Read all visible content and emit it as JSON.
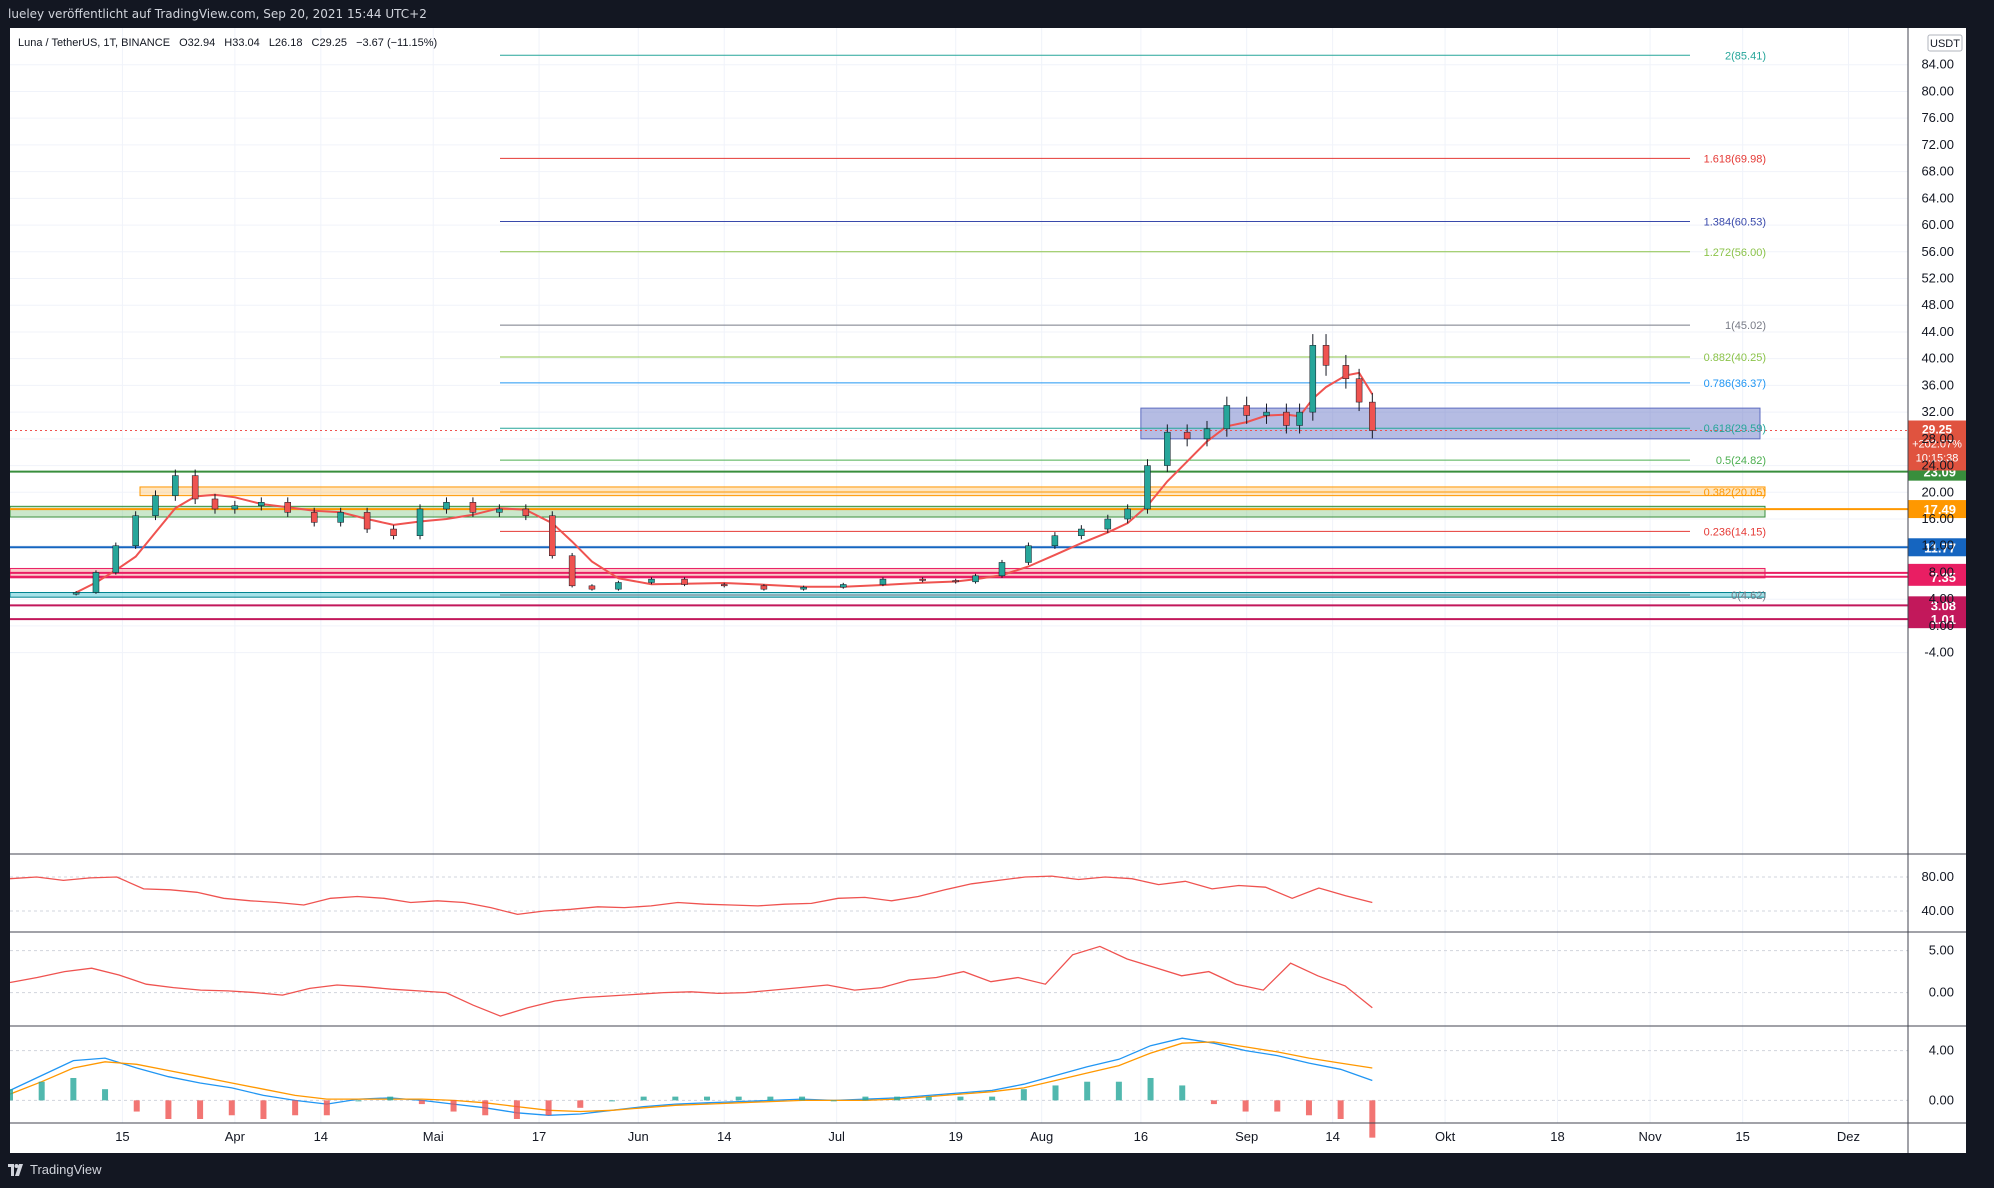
{
  "header": {
    "publisher": "lueley veröffentlicht auf TradingView.com, Sep 20, 2021 15:44 UTC+2"
  },
  "legend": {
    "symbol": "Luna / TetherUS, 1T, BINANCE",
    "open": "O32.94",
    "high": "H33.04",
    "low": "L26.18",
    "close": "C29.25",
    "change": "−3.67 (−11.15%)"
  },
  "currency": "USDT",
  "footer": {
    "brand": "TradingView"
  },
  "colors": {
    "up": "#26a69a",
    "down": "#ef5350",
    "green_line": "#388e3c",
    "orange_line": "#ff9800",
    "blue_line": "#1565c0",
    "pink_line": "#e91e63",
    "crimson_line": "#c2185b"
  },
  "chart_data": [
    {
      "type": "candlestick",
      "name": "main",
      "symbol": "Luna / TetherUS",
      "timeframe": "1T",
      "exchange": "BINANCE",
      "y_ticks": [
        "84.00",
        "80.00",
        "76.00",
        "72.00",
        "68.00",
        "64.00",
        "60.00",
        "56.00",
        "52.00",
        "48.00",
        "44.00",
        "40.00",
        "36.00",
        "32.00",
        "28.00",
        "24.00",
        "20.00",
        "16.00",
        "12.00",
        "8.00",
        "4.00",
        "0.00",
        "-4.00"
      ],
      "ylim": [
        -6,
        88
      ],
      "x_ticks": [
        "15",
        "Apr",
        "14",
        "Mai",
        "17",
        "Jun",
        "14",
        "Jul",
        "19",
        "Aug",
        "16",
        "Sep",
        "14",
        "Okt",
        "18",
        "Nov",
        "15",
        "Dez"
      ],
      "close_series": [
        {
          "date": "2021-03-08",
          "close": 5.0
        },
        {
          "date": "2021-03-11",
          "close": 8.0
        },
        {
          "date": "2021-03-14",
          "close": 12.0
        },
        {
          "date": "2021-03-17",
          "close": 16.5
        },
        {
          "date": "2021-03-20",
          "close": 19.5
        },
        {
          "date": "2021-03-23",
          "close": 22.5
        },
        {
          "date": "2021-03-26",
          "close": 19.0
        },
        {
          "date": "2021-03-29",
          "close": 17.5
        },
        {
          "date": "2021-04-01",
          "close": 18.0
        },
        {
          "date": "2021-04-05",
          "close": 18.5
        },
        {
          "date": "2021-04-09",
          "close": 17.0
        },
        {
          "date": "2021-04-13",
          "close": 15.5
        },
        {
          "date": "2021-04-17",
          "close": 17.0
        },
        {
          "date": "2021-04-21",
          "close": 14.5
        },
        {
          "date": "2021-04-25",
          "close": 13.5
        },
        {
          "date": "2021-04-29",
          "close": 17.5
        },
        {
          "date": "2021-05-03",
          "close": 18.5
        },
        {
          "date": "2021-05-07",
          "close": 17.0
        },
        {
          "date": "2021-05-11",
          "close": 17.5
        },
        {
          "date": "2021-05-15",
          "close": 16.5
        },
        {
          "date": "2021-05-19",
          "close": 10.5
        },
        {
          "date": "2021-05-22",
          "close": 6.0
        },
        {
          "date": "2021-05-25",
          "close": 5.5
        },
        {
          "date": "2021-05-29",
          "close": 6.5
        },
        {
          "date": "2021-06-03",
          "close": 7.0
        },
        {
          "date": "2021-06-08",
          "close": 6.2
        },
        {
          "date": "2021-06-14",
          "close": 6.0
        },
        {
          "date": "2021-06-20",
          "close": 5.5
        },
        {
          "date": "2021-06-26",
          "close": 5.8
        },
        {
          "date": "2021-07-02",
          "close": 6.2
        },
        {
          "date": "2021-07-08",
          "close": 7.0
        },
        {
          "date": "2021-07-14",
          "close": 6.8
        },
        {
          "date": "2021-07-19",
          "close": 6.6
        },
        {
          "date": "2021-07-22",
          "close": 7.5
        },
        {
          "date": "2021-07-26",
          "close": 9.5
        },
        {
          "date": "2021-07-30",
          "close": 12.0
        },
        {
          "date": "2021-08-03",
          "close": 13.5
        },
        {
          "date": "2021-08-07",
          "close": 14.5
        },
        {
          "date": "2021-08-11",
          "close": 16.0
        },
        {
          "date": "2021-08-14",
          "close": 17.5
        },
        {
          "date": "2021-08-17",
          "close": 24.0
        },
        {
          "date": "2021-08-20",
          "close": 29.0
        },
        {
          "date": "2021-08-23",
          "close": 28.0
        },
        {
          "date": "2021-08-26",
          "close": 29.5
        },
        {
          "date": "2021-08-29",
          "close": 33.0
        },
        {
          "date": "2021-09-01",
          "close": 31.5
        },
        {
          "date": "2021-09-04",
          "close": 32.0
        },
        {
          "date": "2021-09-07",
          "close": 30.0
        },
        {
          "date": "2021-09-09",
          "close": 32.0
        },
        {
          "date": "2021-09-11",
          "close": 42.0
        },
        {
          "date": "2021-09-13",
          "close": 39.0
        },
        {
          "date": "2021-09-16",
          "close": 37.0
        },
        {
          "date": "2021-09-18",
          "close": 33.5
        },
        {
          "date": "2021-09-20",
          "close": 29.25
        }
      ],
      "last_price": {
        "value": "29.25",
        "change_pct": "+202.07%",
        "countdown": "10:15:38"
      },
      "fib_levels": [
        {
          "ratio": "2",
          "price": "85.41",
          "label": "2(85.41)",
          "color": "#26a69a"
        },
        {
          "ratio": "1.618",
          "price": "69.98",
          "label": "1.618(69.98)",
          "color": "#e53935"
        },
        {
          "ratio": "1.384",
          "price": "60.53",
          "label": "1.384(60.53)",
          "color": "#3949ab"
        },
        {
          "ratio": "1.272",
          "price": "56.00",
          "label": "1.272(56.00)",
          "color": "#8bc34a"
        },
        {
          "ratio": "1",
          "price": "45.02",
          "label": "1(45.02)",
          "color": "#787b86"
        },
        {
          "ratio": "0.882",
          "price": "40.25",
          "label": "0.882(40.25)",
          "color": "#8bc34a"
        },
        {
          "ratio": "0.786",
          "price": "36.37",
          "label": "0.786(36.37)",
          "color": "#2196f3"
        },
        {
          "ratio": "0.618",
          "price": "29.59",
          "label": "0.618(29.59)",
          "color": "#26a69a"
        },
        {
          "ratio": "0.5",
          "price": "24.82",
          "label": "0.5(24.82)",
          "color": "#4caf50"
        },
        {
          "ratio": "0.382",
          "price": "20.05",
          "label": "0.382(20.05)",
          "color": "#ff9800"
        },
        {
          "ratio": "0.236",
          "price": "14.15",
          "label": "0.236(14.15)",
          "color": "#e53935"
        },
        {
          "ratio": "0",
          "price": "4.62",
          "label": "0(4.62)",
          "color": "#787b86"
        }
      ],
      "horizontal_levels": [
        {
          "price": "23.09",
          "color": "#388e3c"
        },
        {
          "price": "17.49",
          "color": "#ff9800"
        },
        {
          "price": "11.77",
          "color": "#1565c0"
        },
        {
          "price": "7.94",
          "color": "#e91e63"
        },
        {
          "price": "7.35",
          "color": "#e91e63"
        },
        {
          "price": "3.08",
          "color": "#c2185b"
        },
        {
          "price": "1.01",
          "color": "#c2185b"
        }
      ]
    },
    {
      "type": "line",
      "name": "oscillator-1",
      "y_ticks": [
        "80.00",
        "40.00"
      ],
      "ylim": [
        20,
        100
      ],
      "values": [
        78,
        80,
        76,
        79,
        80,
        66,
        65,
        62,
        55,
        52,
        50,
        47,
        55,
        57,
        55,
        50,
        52,
        50,
        44,
        36,
        40,
        42,
        45,
        44,
        46,
        50,
        48,
        47,
        46,
        48,
        49,
        55,
        56,
        52,
        57,
        65,
        72,
        76,
        80,
        81,
        77,
        80,
        78,
        71,
        75,
        66,
        70,
        68,
        55,
        67,
        58,
        50
      ]
    },
    {
      "type": "line",
      "name": "oscillator-2",
      "y_ticks": [
        "5.00",
        "0.00"
      ],
      "ylim": [
        -3.5,
        6.5
      ],
      "values": [
        1.2,
        1.8,
        2.5,
        2.9,
        2.1,
        1.0,
        0.6,
        0.3,
        0.2,
        0.0,
        -0.3,
        0.5,
        0.9,
        0.7,
        0.4,
        0.2,
        0.0,
        -1.5,
        -2.8,
        -1.8,
        -1.0,
        -0.6,
        -0.4,
        -0.2,
        0.0,
        0.1,
        -0.1,
        0.0,
        0.3,
        0.6,
        0.9,
        0.3,
        0.6,
        1.5,
        1.8,
        2.5,
        1.3,
        1.8,
        1.0,
        4.5,
        5.5,
        4.0,
        3.0,
        2.0,
        2.5,
        1.0,
        0.3,
        3.5,
        2.0,
        0.8,
        -1.8
      ]
    },
    {
      "type": "bar",
      "name": "macd-panel",
      "y_ticks": [
        "4.00",
        "0.00"
      ],
      "ylim": [
        -1.5,
        5.5
      ],
      "macd": [
        0.8,
        2.0,
        3.2,
        3.4,
        2.6,
        1.9,
        1.4,
        1.0,
        0.4,
        0.0,
        -0.3,
        0.1,
        0.2,
        0.0,
        -0.3,
        -0.6,
        -1.0,
        -1.2,
        -1.1,
        -0.8,
        -0.5,
        -0.3,
        -0.2,
        -0.1,
        0.0,
        0.1,
        0.0,
        0.1,
        0.2,
        0.4,
        0.6,
        0.8,
        1.3,
        2.0,
        2.7,
        3.3,
        4.4,
        5.0,
        4.6,
        4.0,
        3.6,
        3.0,
        2.5,
        1.6
      ],
      "signal": [
        0.5,
        1.5,
        2.6,
        3.1,
        2.9,
        2.4,
        1.9,
        1.4,
        0.9,
        0.4,
        0.1,
        0.1,
        0.1,
        0.1,
        0.0,
        -0.2,
        -0.5,
        -0.8,
        -0.9,
        -0.8,
        -0.6,
        -0.4,
        -0.3,
        -0.2,
        -0.1,
        0.0,
        0.0,
        0.0,
        0.1,
        0.3,
        0.5,
        0.7,
        1.0,
        1.6,
        2.2,
        2.8,
        3.8,
        4.6,
        4.7,
        4.3,
        3.9,
        3.4,
        3.0,
        2.6
      ]
    }
  ]
}
